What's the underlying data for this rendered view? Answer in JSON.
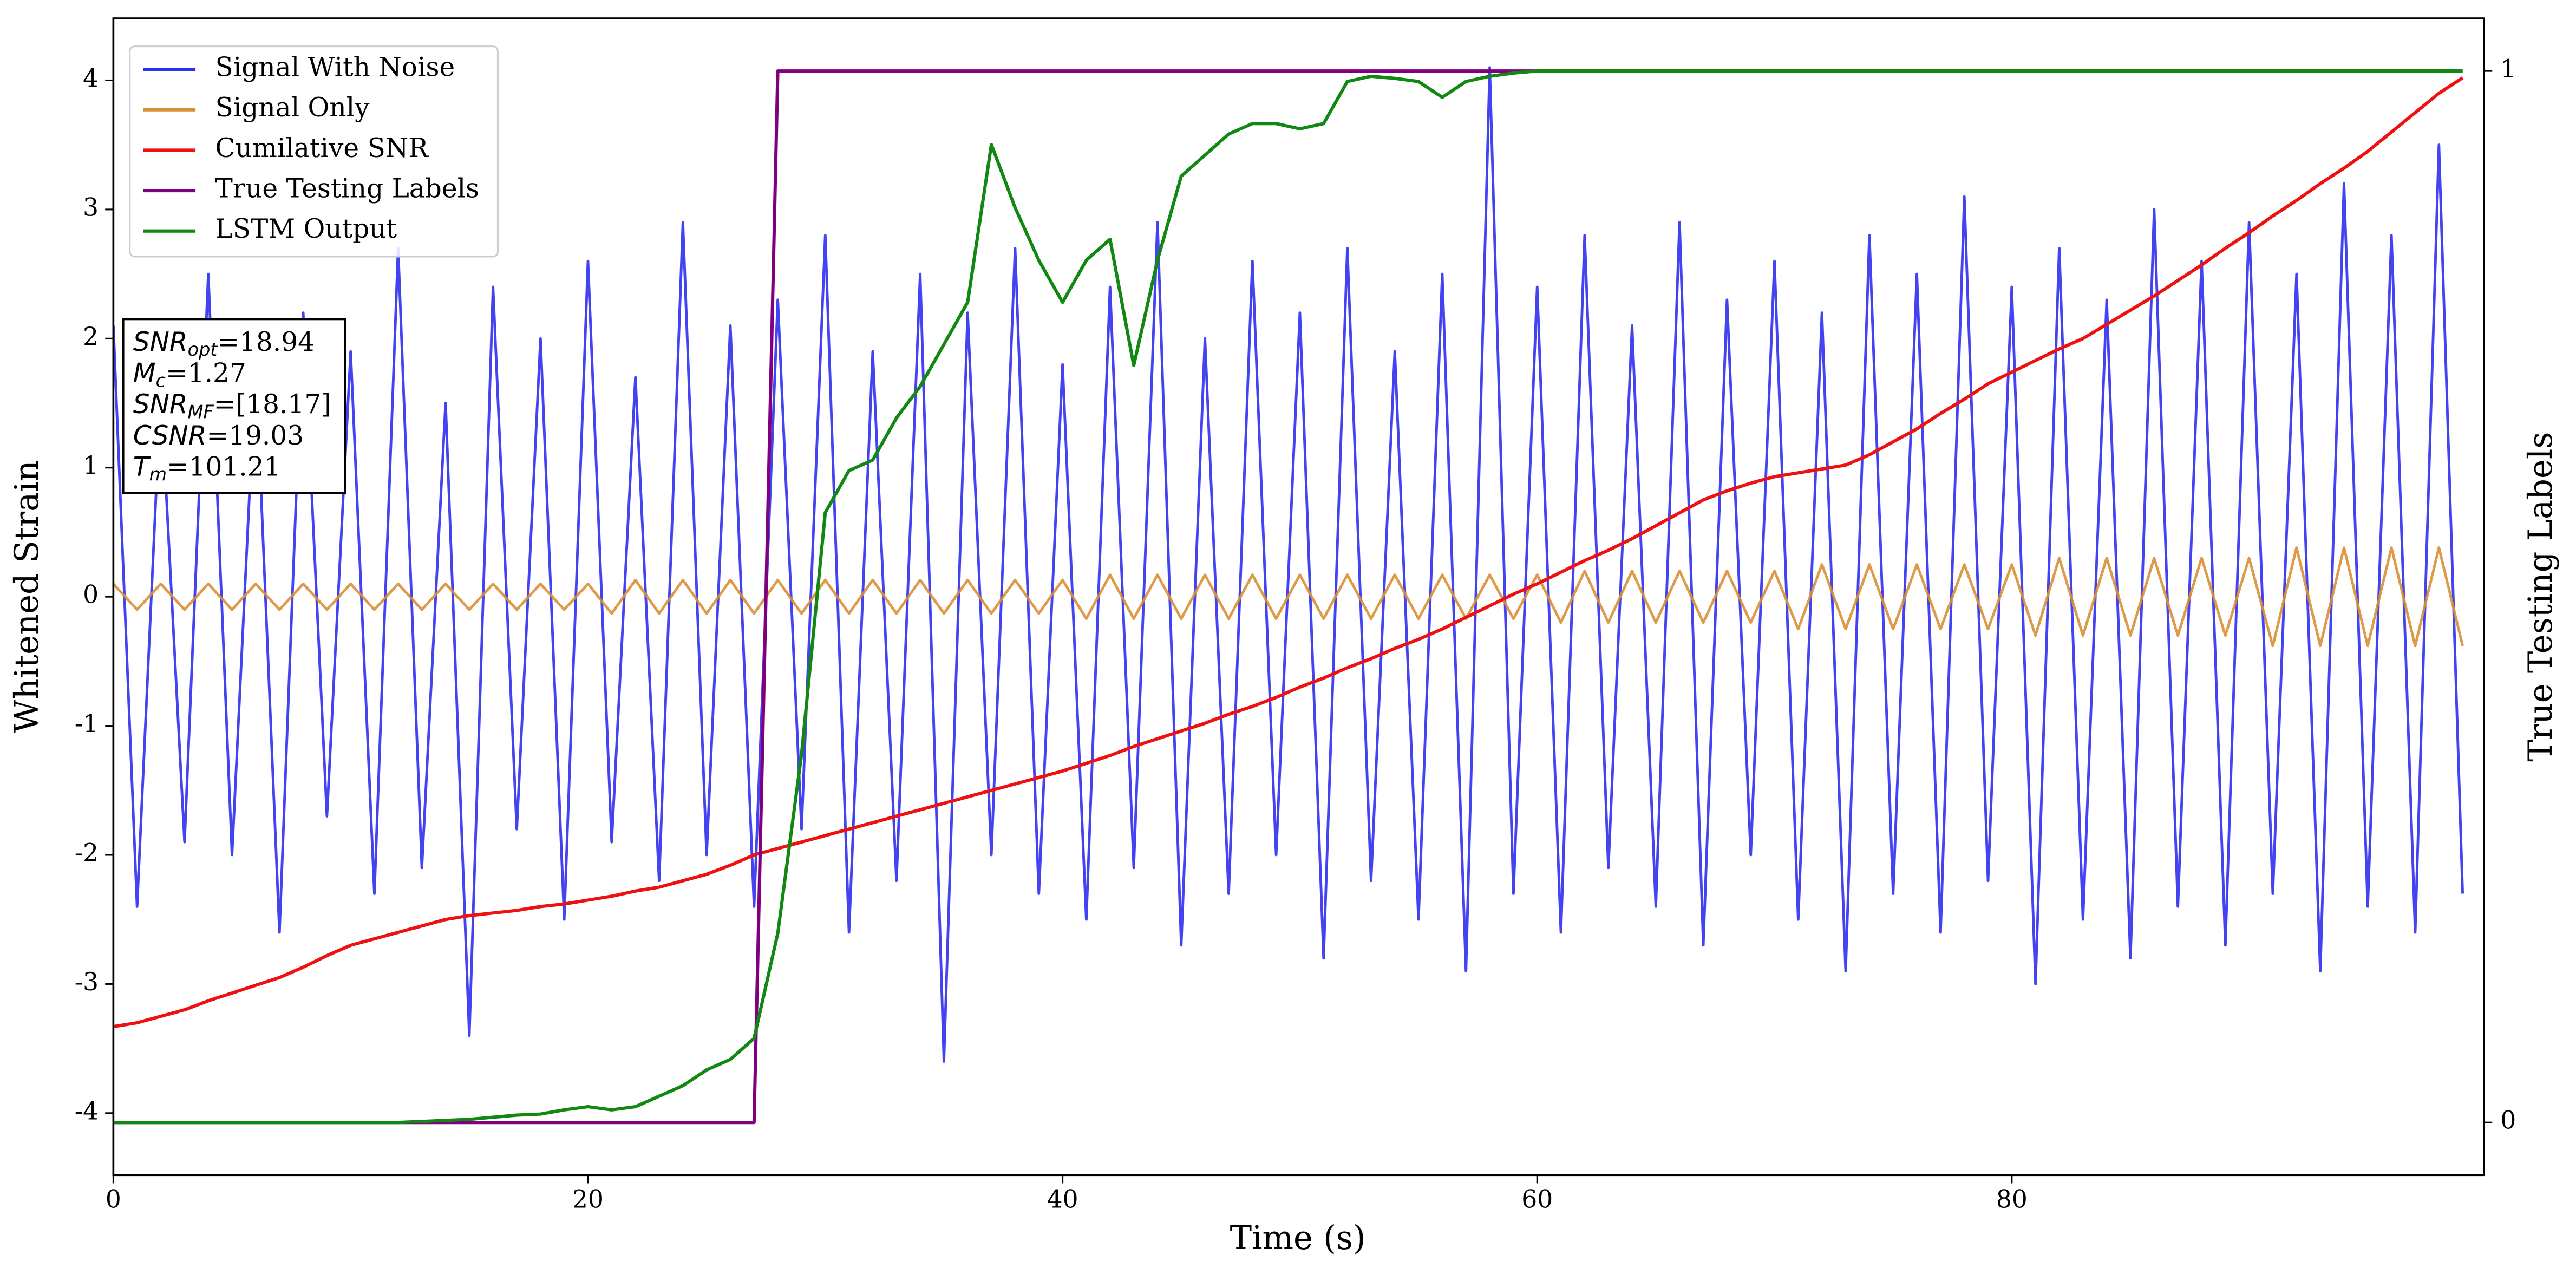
{
  "chart_data": {
    "type": "line",
    "xlabel": "Time (s)",
    "ylabel": "Whitened Strain",
    "y2label": "True Testing Labels",
    "xlim": [
      0,
      99.9
    ],
    "ylim": [
      -4.48,
      4.48
    ],
    "y2lim": [
      -0.05,
      1.05
    ],
    "xticks": [
      0,
      20,
      40,
      60,
      80
    ],
    "yticks": [
      -4,
      -3,
      -2,
      -1,
      0,
      1,
      2,
      3,
      4
    ],
    "y2ticks": [
      0,
      1
    ],
    "legend": "upper left",
    "annotations": [
      {
        "main": "SNR",
        "sub": "opt",
        "rest": "=18.94"
      },
      {
        "main": "M",
        "sub": "c",
        "rest": "=1.27"
      },
      {
        "main": "SNR",
        "sub": "MF",
        "rest": "=[18.17]"
      },
      {
        "main": "CSNR",
        "rest": "=19.03"
      },
      {
        "main": "T",
        "sub": "m",
        "rest": "=101.21"
      }
    ],
    "x": [
      0,
      1,
      2,
      3,
      4,
      5,
      6,
      7,
      8,
      9,
      10,
      11,
      12,
      13,
      14,
      15,
      16,
      17,
      18,
      19,
      20,
      21,
      22,
      23,
      24,
      25,
      26,
      27,
      28,
      29,
      30,
      31,
      32,
      33,
      34,
      35,
      36,
      37,
      38,
      39,
      40,
      41,
      42,
      43,
      44,
      45,
      46,
      47,
      48,
      49,
      50,
      51,
      52,
      53,
      54,
      55,
      56,
      57,
      58,
      59,
      60,
      61,
      62,
      63,
      64,
      65,
      66,
      67,
      68,
      69,
      70,
      71,
      72,
      73,
      74,
      75,
      76,
      77,
      78,
      79,
      80,
      81,
      82,
      83,
      84,
      85,
      86,
      87,
      88,
      89,
      90,
      91,
      92,
      93,
      94,
      95,
      96,
      97,
      98,
      99
    ],
    "series": [
      {
        "name": "Signal With Noise",
        "color": "#2f2fef",
        "values": [
          2.1,
          -2.4,
          1.6,
          -1.9,
          2.5,
          -2.0,
          1.8,
          -2.6,
          2.2,
          -1.7,
          1.9,
          -2.3,
          2.7,
          -2.1,
          1.5,
          -3.4,
          2.4,
          -1.8,
          2.0,
          -2.5,
          2.6,
          -1.9,
          1.7,
          -2.2,
          2.9,
          -2.0,
          2.1,
          -2.4,
          2.3,
          -1.8,
          2.8,
          -2.6,
          1.9,
          -2.2,
          2.5,
          -3.6,
          2.2,
          -2.0,
          2.7,
          -2.3,
          1.8,
          -2.5,
          2.4,
          -2.1,
          2.9,
          -2.7,
          2.0,
          -2.3,
          2.6,
          -2.0,
          2.2,
          -2.8,
          2.7,
          -2.2,
          1.9,
          -2.5,
          2.5,
          -2.9,
          4.1,
          -2.3,
          2.4,
          -2.6,
          2.8,
          -2.1,
          2.1,
          -2.4,
          2.9,
          -2.7,
          2.3,
          -2.0,
          2.6,
          -2.5,
          2.2,
          -2.9,
          2.8,
          -2.3,
          2.5,
          -2.6,
          3.1,
          -2.2,
          2.4,
          -3.0,
          2.7,
          -2.5,
          2.3,
          -2.8,
          3.0,
          -2.4,
          2.6,
          -2.7,
          2.9,
          -2.3,
          2.5,
          -2.9,
          3.2,
          -2.4,
          2.8,
          -2.6,
          3.5,
          -2.3
        ]
      },
      {
        "name": "Signal Only",
        "color": "#d99035",
        "values": [
          0.1,
          -0.1,
          0.1,
          -0.1,
          0.1,
          -0.1,
          0.1,
          -0.1,
          0.1,
          -0.1,
          0.1,
          -0.1,
          0.1,
          -0.1,
          0.1,
          -0.1,
          0.1,
          -0.1,
          0.1,
          -0.1,
          0.1,
          -0.13,
          0.13,
          -0.13,
          0.13,
          -0.13,
          0.13,
          -0.13,
          0.13,
          -0.13,
          0.13,
          -0.13,
          0.13,
          -0.13,
          0.13,
          -0.13,
          0.13,
          -0.13,
          0.13,
          -0.13,
          0.13,
          -0.17,
          0.17,
          -0.17,
          0.17,
          -0.17,
          0.17,
          -0.17,
          0.17,
          -0.17,
          0.17,
          -0.17,
          0.17,
          -0.17,
          0.17,
          -0.17,
          0.17,
          -0.17,
          0.17,
          -0.17,
          0.17,
          -0.2,
          0.2,
          -0.2,
          0.2,
          -0.2,
          0.2,
          -0.2,
          0.2,
          -0.2,
          0.2,
          -0.25,
          0.25,
          -0.25,
          0.25,
          -0.25,
          0.25,
          -0.25,
          0.25,
          -0.25,
          0.25,
          -0.3,
          0.3,
          -0.3,
          0.3,
          -0.3,
          0.3,
          -0.3,
          0.3,
          -0.3,
          0.3,
          -0.38,
          0.38,
          -0.38,
          0.38,
          -0.38,
          0.38,
          -0.38,
          0.38,
          -0.38
        ]
      },
      {
        "name": "Cumilative SNR",
        "color": "#ee1111",
        "values": [
          -3.33,
          -3.3,
          -3.25,
          -3.2,
          -3.13,
          -3.07,
          -3.01,
          -2.95,
          -2.87,
          -2.78,
          -2.7,
          -2.65,
          -2.6,
          -2.55,
          -2.5,
          -2.47,
          -2.45,
          -2.43,
          -2.4,
          -2.38,
          -2.35,
          -2.32,
          -2.28,
          -2.25,
          -2.2,
          -2.15,
          -2.08,
          -2.0,
          -1.95,
          -1.9,
          -1.85,
          -1.8,
          -1.75,
          -1.7,
          -1.65,
          -1.6,
          -1.55,
          -1.5,
          -1.45,
          -1.4,
          -1.35,
          -1.29,
          -1.23,
          -1.16,
          -1.1,
          -1.04,
          -0.98,
          -0.91,
          -0.85,
          -0.78,
          -0.7,
          -0.63,
          -0.55,
          -0.48,
          -0.4,
          -0.33,
          -0.25,
          -0.16,
          -0.07,
          0.02,
          0.1,
          0.19,
          0.28,
          0.36,
          0.45,
          0.55,
          0.65,
          0.75,
          0.82,
          0.88,
          0.93,
          0.96,
          0.99,
          1.02,
          1.1,
          1.2,
          1.3,
          1.42,
          1.53,
          1.65,
          1.74,
          1.83,
          1.92,
          2.0,
          2.11,
          2.22,
          2.33,
          2.45,
          2.57,
          2.7,
          2.82,
          2.95,
          3.07,
          3.2,
          3.32,
          3.45,
          3.6,
          3.75,
          3.9,
          4.02
        ]
      },
      {
        "name": "True Testing Labels",
        "color": "#800080",
        "axis": "y2",
        "values": [
          0,
          0,
          0,
          0,
          0,
          0,
          0,
          0,
          0,
          0,
          0,
          0,
          0,
          0,
          0,
          0,
          0,
          0,
          0,
          0,
          0,
          0,
          0,
          0,
          0,
          0,
          0,
          0,
          1,
          1,
          1,
          1,
          1,
          1,
          1,
          1,
          1,
          1,
          1,
          1,
          1,
          1,
          1,
          1,
          1,
          1,
          1,
          1,
          1,
          1,
          1,
          1,
          1,
          1,
          1,
          1,
          1,
          1,
          1,
          1,
          1,
          1,
          1,
          1,
          1,
          1,
          1,
          1,
          1,
          1,
          1,
          1,
          1,
          1,
          1,
          1,
          1,
          1,
          1,
          1,
          1,
          1,
          1,
          1,
          1,
          1,
          1,
          1,
          1,
          1,
          1,
          1,
          1,
          1,
          1,
          1,
          1,
          1,
          1,
          1
        ]
      },
      {
        "name": "LSTM Output",
        "color": "#118811",
        "axis": "y2",
        "values": [
          0,
          0,
          0,
          0,
          0,
          0,
          0,
          0,
          0,
          0,
          0,
          0,
          0,
          0.001,
          0.002,
          0.003,
          0.005,
          0.007,
          0.008,
          0.012,
          0.015,
          0.012,
          0.015,
          0.025,
          0.035,
          0.05,
          0.06,
          0.08,
          0.18,
          0.35,
          0.58,
          0.62,
          0.63,
          0.67,
          0.7,
          0.74,
          0.78,
          0.93,
          0.87,
          0.82,
          0.78,
          0.82,
          0.84,
          0.72,
          0.82,
          0.9,
          0.92,
          0.94,
          0.95,
          0.95,
          0.945,
          0.95,
          0.99,
          0.995,
          0.993,
          0.99,
          0.975,
          0.99,
          0.995,
          0.998,
          1,
          1,
          1,
          1,
          1,
          1,
          1,
          1,
          1,
          1,
          1,
          1,
          1,
          1,
          1,
          1,
          1,
          1,
          1,
          1,
          1,
          1,
          1,
          1,
          1,
          1,
          1,
          1,
          1,
          1,
          1,
          1,
          1,
          1,
          1,
          1,
          1,
          1,
          1,
          1
        ]
      }
    ]
  }
}
